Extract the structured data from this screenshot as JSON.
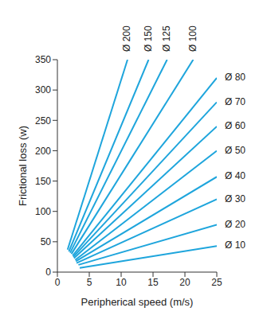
{
  "chart_data": {
    "type": "line",
    "x_label": "Peripherical speed  (m/s)",
    "y_label": "Frictional loss  (w)",
    "xlim": [
      0,
      25
    ],
    "ylim": [
      0,
      350
    ],
    "xticks": [
      0,
      5,
      10,
      15,
      20,
      25
    ],
    "yticks": [
      0,
      50,
      100,
      150,
      200,
      250,
      300,
      350
    ],
    "grid": false,
    "series": [
      {
        "name": "Ø 10",
        "color": "#1ea5dc",
        "x": [
          3.5,
          25
        ],
        "values": [
          7,
          43
        ]
      },
      {
        "name": "Ø 20",
        "color": "#1ea5dc",
        "x": [
          3.3,
          25
        ],
        "values": [
          12,
          78
        ]
      },
      {
        "name": "Ø 30",
        "color": "#1ea5dc",
        "x": [
          3.0,
          25
        ],
        "values": [
          15,
          120
        ]
      },
      {
        "name": "Ø 40",
        "color": "#1ea5dc",
        "x": [
          2.9,
          25
        ],
        "values": [
          18,
          157
        ]
      },
      {
        "name": "Ø 50",
        "color": "#1ea5dc",
        "x": [
          2.8,
          25
        ],
        "values": [
          20,
          200
        ]
      },
      {
        "name": "Ø 60",
        "color": "#1ea5dc",
        "x": [
          2.6,
          25
        ],
        "values": [
          23,
          240
        ]
      },
      {
        "name": "Ø 70",
        "color": "#1ea5dc",
        "x": [
          2.5,
          25
        ],
        "values": [
          25,
          280
        ]
      },
      {
        "name": "Ø 80",
        "color": "#1ea5dc",
        "x": [
          2.4,
          25
        ],
        "values": [
          27,
          320
        ]
      },
      {
        "name": "Ø 100",
        "color": "#1ea5dc",
        "x": [
          2.2,
          21.3
        ],
        "values": [
          30,
          350
        ]
      },
      {
        "name": "Ø 125",
        "color": "#1ea5dc",
        "x": [
          2.0,
          17.2
        ],
        "values": [
          32,
          350
        ]
      },
      {
        "name": "Ø 150",
        "color": "#1ea5dc",
        "x": [
          1.8,
          14.3
        ],
        "values": [
          34,
          350
        ]
      },
      {
        "name": "Ø 200",
        "color": "#1ea5dc",
        "x": [
          1.6,
          11
        ],
        "values": [
          37,
          350
        ]
      }
    ]
  }
}
